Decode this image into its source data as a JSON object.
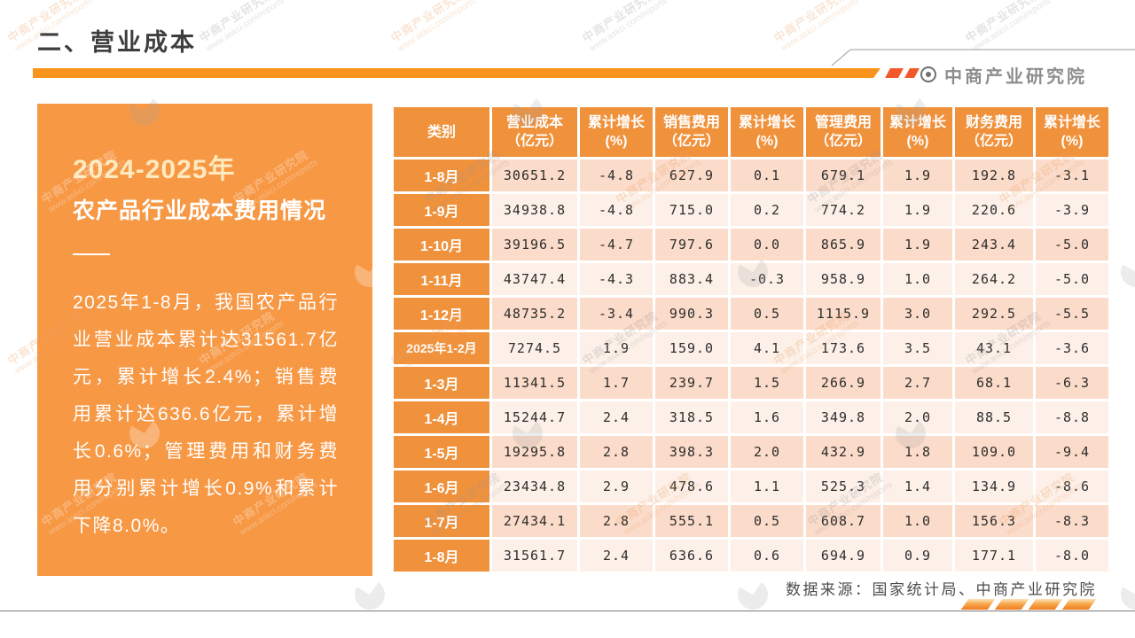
{
  "page": {
    "title": "二、营业成本",
    "logo_text": "中商产业研究院",
    "source_note": "数据来源：国家统计局、中商产业研究院"
  },
  "panel": {
    "heading_line1": "2024-2025年",
    "heading_line2": "农产品行业成本费用情况",
    "body": "2025年1-8月，我国农产品行业营业成本累计达31561.7亿元，累计增长2.4%；销售费用累计达636.6亿元，累计增长0.6%；管理费用和财务费用分别累计增长0.9%和累计下降8.0%。"
  },
  "watermark": {
    "line1": "中商产业研究院",
    "line2": "www.askci.com/reports"
  },
  "colors": {
    "accent_orange": "#F8941C",
    "panel_orange": "#F79845",
    "table_orange": "#F0913C",
    "row_dark": "#FBDBC9",
    "row_light": "#FDF0E8",
    "slash_red": "#F2592A",
    "title_gray": "#3E3E3E",
    "logo_gray": "#8D8D8D"
  },
  "table": {
    "headers": [
      {
        "l1": "类别",
        "l2": ""
      },
      {
        "l1": "营业成本",
        "l2": "（亿元）"
      },
      {
        "l1": "累计增长",
        "l2": "(%)"
      },
      {
        "l1": "销售费用",
        "l2": "（亿元）"
      },
      {
        "l1": "累计增长",
        "l2": "(%)"
      },
      {
        "l1": "管理费用",
        "l2": "（亿元）"
      },
      {
        "l1": "累计增长",
        "l2": "(%)"
      },
      {
        "l1": "财务费用",
        "l2": "（亿元）"
      },
      {
        "l1": "累计增长",
        "l2": "(%)"
      }
    ],
    "rows": [
      {
        "label": "1-8月",
        "values": [
          "30651.2",
          "-4.8",
          "627.9",
          "0.1",
          "679.1",
          "1.9",
          "192.8",
          "-3.1"
        ]
      },
      {
        "label": "1-9月",
        "values": [
          "34938.8",
          "-4.8",
          "715.0",
          "0.2",
          "774.2",
          "1.9",
          "220.6",
          "-3.9"
        ]
      },
      {
        "label": "1-10月",
        "values": [
          "39196.5",
          "-4.7",
          "797.6",
          "0.0",
          "865.9",
          "1.9",
          "243.4",
          "-5.0"
        ]
      },
      {
        "label": "1-11月",
        "values": [
          "43747.4",
          "-4.3",
          "883.4",
          "-0.3",
          "958.9",
          "1.0",
          "264.2",
          "-5.0"
        ]
      },
      {
        "label": "1-12月",
        "values": [
          "48735.2",
          "-3.4",
          "990.3",
          "0.5",
          "1115.9",
          "3.0",
          "292.5",
          "-5.5"
        ]
      },
      {
        "label": "2025年1-2月",
        "values": [
          "7274.5",
          "1.9",
          "159.0",
          "4.1",
          "173.6",
          "3.5",
          "43.1",
          "-3.6"
        ]
      },
      {
        "label": "1-3月",
        "values": [
          "11341.5",
          "1.7",
          "239.7",
          "1.5",
          "266.9",
          "2.7",
          "68.1",
          "-6.3"
        ]
      },
      {
        "label": "1-4月",
        "values": [
          "15244.7",
          "2.4",
          "318.5",
          "1.6",
          "349.8",
          "2.0",
          "88.5",
          "-8.8"
        ]
      },
      {
        "label": "1-5月",
        "values": [
          "19295.8",
          "2.8",
          "398.3",
          "2.0",
          "432.9",
          "1.8",
          "109.0",
          "-9.4"
        ]
      },
      {
        "label": "1-6月",
        "values": [
          "23434.8",
          "2.9",
          "478.6",
          "1.1",
          "525.3",
          "1.4",
          "134.9",
          "-8.6"
        ]
      },
      {
        "label": "1-7月",
        "values": [
          "27434.1",
          "2.8",
          "555.1",
          "0.5",
          "608.7",
          "1.0",
          "156.3",
          "-8.3"
        ]
      },
      {
        "label": "1-8月",
        "values": [
          "31561.7",
          "2.4",
          "636.6",
          "0.6",
          "694.9",
          "0.9",
          "177.1",
          "-8.0"
        ]
      }
    ]
  }
}
